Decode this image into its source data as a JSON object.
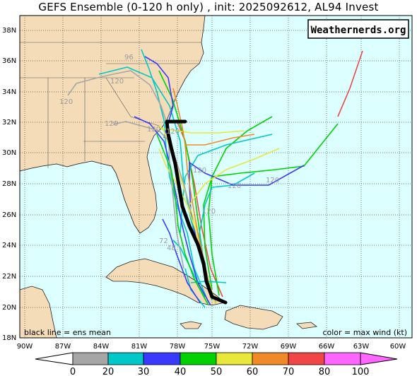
{
  "title": "GEFS Ensemble (0-120 h only) , init: 2025092612, AL94 Invest",
  "brand": "Weathernerds.org",
  "note_left": "black line = ens mean",
  "note_right": "color = max wind (kt)",
  "lat_labels": [
    "38N",
    "36N",
    "34N",
    "32N",
    "30N",
    "28N",
    "26N",
    "24N",
    "22N",
    "20N",
    "18N"
  ],
  "lon_labels": [
    "90W",
    "87W",
    "84W",
    "81W",
    "78W",
    "75W",
    "72W",
    "69W",
    "66W",
    "63W",
    "60W"
  ],
  "colorbar": {
    "ticks": [
      "0",
      "20",
      "30",
      "40",
      "50",
      "60",
      "70",
      "80",
      "100"
    ],
    "colors": [
      "#a6a6a6",
      "#00c8c8",
      "#3a3aff",
      "#00d200",
      "#e8e83a",
      "#f08a28",
      "#f04646",
      "#ff66ff"
    ]
  },
  "hour_labels": [
    "120",
    "120",
    "120",
    "120",
    "120",
    "120",
    "72",
    "48",
    "96",
    "120",
    "120",
    "120"
  ],
  "colors": {
    "ocean": "#dcffff",
    "land": "#f5dcb8",
    "mean_track": "#000000"
  }
}
